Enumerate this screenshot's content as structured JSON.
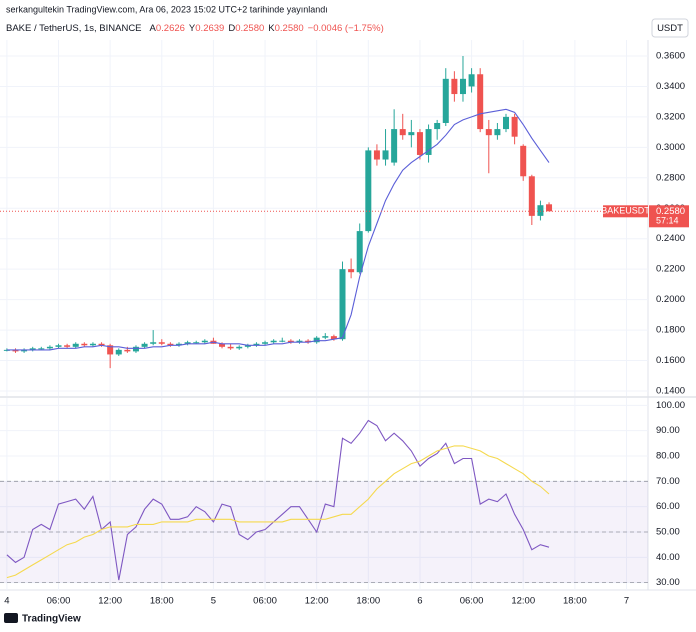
{
  "header": {
    "published": "serkangultekin TradingView.com, Ara 06, 2023 15:02 UTC+2 tarihinde yayınlandı",
    "currency": "USDT",
    "brand": "TradingView"
  },
  "legend": {
    "symbol": "BAKE / TetherUS, 1s, BINANCE",
    "labels": [
      "A",
      "Y",
      "D",
      "K"
    ],
    "values": [
      "0.2626",
      "0.2639",
      "0.2580",
      "0.2580"
    ],
    "change": "−0.0046 (−1.75%)"
  },
  "price_tag": {
    "name": "BAKEUSDT",
    "price": "0.2580",
    "countdown": "57:14"
  },
  "chart_data": [
    {
      "type": "candlestick",
      "up_color": "#26a69a",
      "down_color": "#ef5350",
      "grid": true,
      "x": [
        0,
        1,
        2,
        3,
        4,
        5,
        6,
        7,
        8,
        9,
        10,
        11,
        12,
        13,
        14,
        15,
        16,
        17,
        18,
        19,
        20,
        21,
        22,
        23,
        24,
        25,
        26,
        27,
        28,
        29,
        30,
        31,
        32,
        33,
        34,
        35,
        36,
        37,
        38,
        39,
        40,
        41,
        42,
        43,
        44,
        45,
        46,
        47,
        48,
        49,
        50,
        51,
        52,
        53,
        54,
        55,
        56,
        57,
        58,
        59,
        60,
        61,
        62,
        63
      ],
      "open": [
        0.167,
        0.167,
        0.166,
        0.167,
        0.168,
        0.168,
        0.169,
        0.17,
        0.169,
        0.171,
        0.17,
        0.171,
        0.17,
        0.164,
        0.167,
        0.166,
        0.169,
        0.171,
        0.172,
        0.171,
        0.17,
        0.171,
        0.172,
        0.172,
        0.173,
        0.171,
        0.169,
        0.168,
        0.169,
        0.17,
        0.171,
        0.172,
        0.173,
        0.173,
        0.172,
        0.173,
        0.172,
        0.175,
        0.176,
        0.174,
        0.22,
        0.218,
        0.245,
        0.298,
        0.292,
        0.29,
        0.312,
        0.308,
        0.31,
        0.295,
        0.312,
        0.316,
        0.345,
        0.335,
        0.34,
        0.348,
        0.312,
        0.308,
        0.312,
        0.32,
        0.301,
        0.281,
        0.255,
        0.2626
      ],
      "high": [
        0.168,
        0.168,
        0.168,
        0.169,
        0.169,
        0.17,
        0.171,
        0.171,
        0.172,
        0.172,
        0.172,
        0.172,
        0.171,
        0.168,
        0.169,
        0.17,
        0.172,
        0.18,
        0.174,
        0.172,
        0.172,
        0.173,
        0.173,
        0.174,
        0.175,
        0.172,
        0.171,
        0.17,
        0.171,
        0.172,
        0.173,
        0.174,
        0.175,
        0.174,
        0.174,
        0.174,
        0.176,
        0.178,
        0.177,
        0.225,
        0.227,
        0.25,
        0.3,
        0.302,
        0.312,
        0.325,
        0.322,
        0.318,
        0.312,
        0.315,
        0.318,
        0.352,
        0.35,
        0.36,
        0.352,
        0.352,
        0.318,
        0.316,
        0.322,
        0.322,
        0.302,
        0.282,
        0.265,
        0.2639
      ],
      "low": [
        0.166,
        0.165,
        0.165,
        0.166,
        0.167,
        0.167,
        0.168,
        0.168,
        0.168,
        0.169,
        0.169,
        0.169,
        0.155,
        0.163,
        0.165,
        0.165,
        0.168,
        0.17,
        0.17,
        0.169,
        0.169,
        0.17,
        0.171,
        0.171,
        0.171,
        0.168,
        0.167,
        0.167,
        0.168,
        0.169,
        0.17,
        0.171,
        0.172,
        0.171,
        0.171,
        0.171,
        0.171,
        0.174,
        0.173,
        0.173,
        0.214,
        0.217,
        0.244,
        0.288,
        0.288,
        0.288,
        0.305,
        0.3,
        0.292,
        0.29,
        0.305,
        0.314,
        0.33,
        0.33,
        0.336,
        0.31,
        0.283,
        0.305,
        0.31,
        0.302,
        0.278,
        0.249,
        0.252,
        0.258
      ],
      "close": [
        0.167,
        0.166,
        0.167,
        0.168,
        0.168,
        0.169,
        0.17,
        0.169,
        0.171,
        0.17,
        0.171,
        0.17,
        0.164,
        0.167,
        0.166,
        0.169,
        0.171,
        0.172,
        0.171,
        0.17,
        0.171,
        0.172,
        0.172,
        0.173,
        0.171,
        0.169,
        0.168,
        0.169,
        0.17,
        0.171,
        0.172,
        0.173,
        0.173,
        0.172,
        0.173,
        0.172,
        0.175,
        0.176,
        0.174,
        0.22,
        0.218,
        0.245,
        0.298,
        0.292,
        0.298,
        0.312,
        0.308,
        0.31,
        0.295,
        0.312,
        0.316,
        0.345,
        0.335,
        0.345,
        0.348,
        0.312,
        0.308,
        0.312,
        0.32,
        0.307,
        0.281,
        0.255,
        0.262,
        0.258
      ],
      "series": [
        {
          "color": "#5b5fd8",
          "values": [
            0.167,
            0.167,
            0.167,
            0.167,
            0.167,
            0.167,
            0.168,
            0.168,
            0.168,
            0.169,
            0.169,
            0.17,
            0.169,
            0.169,
            0.168,
            0.168,
            0.168,
            0.169,
            0.169,
            0.17,
            0.17,
            0.171,
            0.171,
            0.171,
            0.172,
            0.171,
            0.171,
            0.171,
            0.17,
            0.17,
            0.17,
            0.171,
            0.171,
            0.172,
            0.172,
            0.172,
            0.173,
            0.173,
            0.174,
            0.175,
            0.19,
            0.215,
            0.235,
            0.25,
            0.265,
            0.276,
            0.285,
            0.29,
            0.294,
            0.298,
            0.302,
            0.308,
            0.315,
            0.318,
            0.32,
            0.322,
            0.323,
            0.324,
            0.325,
            0.323,
            0.315,
            0.306,
            0.298,
            0.29
          ]
        }
      ],
      "xlim": [
        -0.8,
        74.5
      ],
      "ylim": [
        0.1367,
        0.3705
      ],
      "yticks": [
        {
          "value": 0.14,
          "label": "0.1400"
        },
        {
          "value": 0.16,
          "label": "0.1600"
        },
        {
          "value": 0.18,
          "label": "0.1800"
        },
        {
          "value": 0.2,
          "label": "0.2000"
        },
        {
          "value": 0.22,
          "label": "0.2200"
        },
        {
          "value": 0.24,
          "label": "0.2400"
        },
        {
          "value": 0.26,
          "label": "0.2600"
        },
        {
          "value": 0.28,
          "label": "0.2800"
        },
        {
          "value": 0.3,
          "label": "0.3000"
        },
        {
          "value": 0.32,
          "label": "0.3200"
        },
        {
          "value": 0.34,
          "label": "0.3400"
        },
        {
          "value": 0.36,
          "label": "0.3600"
        }
      ]
    },
    {
      "type": "line",
      "grid": true,
      "band": [
        30,
        70
      ],
      "midline": 50,
      "band_color": "#7e57c2",
      "series": [
        {
          "color": "#7e57c2",
          "values": [
            41,
            38,
            40,
            51,
            53,
            51,
            61,
            62,
            63,
            59,
            64,
            51,
            54,
            31,
            49,
            52,
            59,
            63,
            61,
            55,
            55,
            56,
            60,
            58,
            54,
            61,
            60,
            49,
            47,
            50,
            51,
            54,
            57,
            60,
            60,
            55,
            50,
            61,
            60,
            87,
            85,
            89,
            94,
            92,
            86,
            89,
            86,
            82,
            76,
            79,
            81,
            85,
            77,
            79,
            79,
            61,
            63,
            62,
            65,
            57,
            51,
            43,
            45,
            44
          ]
        },
        {
          "color": "#f5d94e",
          "values": [
            32,
            33,
            35,
            37,
            39,
            41,
            43,
            45,
            46,
            48,
            49,
            51,
            52,
            52,
            52,
            53,
            53,
            53,
            54,
            54,
            54,
            54,
            55,
            55,
            55,
            55,
            55,
            54,
            54,
            54,
            54,
            54,
            54,
            55,
            55,
            55,
            55,
            55,
            56,
            57,
            57,
            60,
            63,
            67,
            70,
            73,
            75,
            77,
            78,
            80,
            82,
            83,
            84,
            84,
            83,
            82,
            80,
            79,
            77,
            75,
            73,
            70,
            68,
            65
          ]
        }
      ],
      "ylim": [
        27.1,
        102.9
      ],
      "yticks": [
        {
          "value": 30,
          "label": "30.00"
        },
        {
          "value": 40,
          "label": "40.00"
        },
        {
          "value": 50,
          "label": "50.00"
        },
        {
          "value": 60,
          "label": "60.00"
        },
        {
          "value": 70,
          "label": "70.00"
        },
        {
          "value": 80,
          "label": "80.00"
        },
        {
          "value": 90,
          "label": "90.00"
        },
        {
          "value": 100,
          "label": "100.00"
        }
      ],
      "xticks": [
        {
          "value": 0,
          "label": "4"
        },
        {
          "value": 6,
          "label": "06:00"
        },
        {
          "value": 12,
          "label": "12:00"
        },
        {
          "value": 18,
          "label": "18:00"
        },
        {
          "value": 24,
          "label": "5"
        },
        {
          "value": 30,
          "label": "06:00"
        },
        {
          "value": 36,
          "label": "12:00"
        },
        {
          "value": 42,
          "label": "18:00"
        },
        {
          "value": 48,
          "label": "6"
        },
        {
          "value": 54,
          "label": "06:00"
        },
        {
          "value": 60,
          "label": "12:00"
        },
        {
          "value": 66,
          "label": "18:00"
        },
        {
          "value": 72,
          "label": "7"
        }
      ]
    }
  ]
}
